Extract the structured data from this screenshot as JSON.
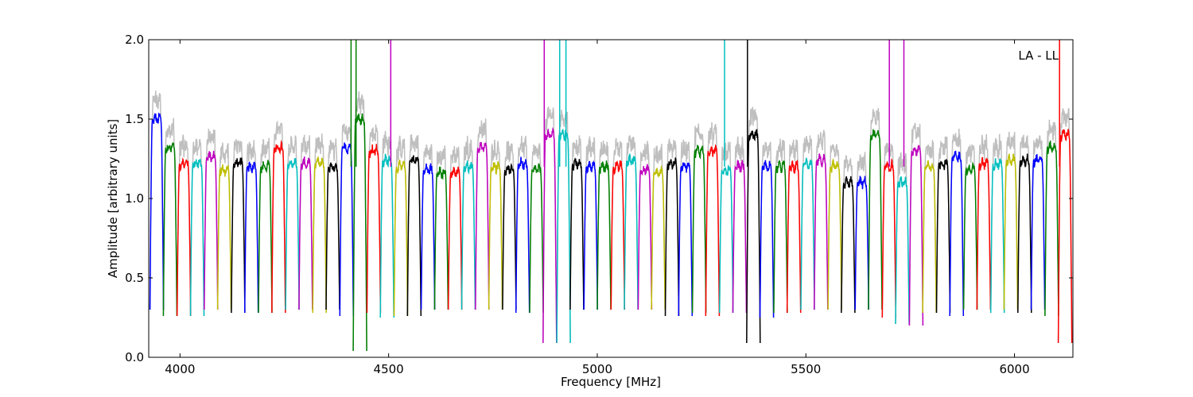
{
  "chart_data": {
    "type": "line",
    "title": "",
    "annotation": "LA - LL",
    "xlabel": "Frequency [MHz]",
    "ylabel": "Amplitude [arbitrary units]",
    "xlim": [
      3925,
      6140
    ],
    "ylim": [
      0.0,
      2.0
    ],
    "xticks": [
      {
        "value": 4000,
        "label": "4000"
      },
      {
        "value": 4500,
        "label": "4500"
      },
      {
        "value": 5000,
        "label": "5000"
      },
      {
        "value": 5500,
        "label": "5500"
      },
      {
        "value": 6000,
        "label": "6000"
      }
    ],
    "yticks": [
      {
        "value": 0.0,
        "label": "0.0"
      },
      {
        "value": 0.5,
        "label": "0.5"
      },
      {
        "value": 1.0,
        "label": "1.0"
      },
      {
        "value": 1.5,
        "label": "1.5"
      },
      {
        "value": 2.0,
        "label": "2.0"
      }
    ],
    "grid": false,
    "legend": "none",
    "channel_width_mhz": 32.5,
    "color_cycle": [
      "#0000ff",
      "#008000",
      "#ff0000",
      "#00bfbf",
      "#bf00bf",
      "#bfbf00",
      "#000000"
    ],
    "background_series": {
      "name": "unflagged",
      "color": "#bfbfbf"
    },
    "series": [
      {
        "start": 3928,
        "level": 1.5,
        "min": 0.3,
        "color": "#0000ff"
      },
      {
        "start": 3960,
        "level": 1.32,
        "min": 0.26,
        "color": "#008000"
      },
      {
        "start": 3993,
        "level": 1.22,
        "min": 0.26,
        "color": "#ff0000"
      },
      {
        "start": 4025,
        "level": 1.22,
        "min": 0.26,
        "color": "#00bfbf"
      },
      {
        "start": 4058,
        "level": 1.26,
        "min": 0.3,
        "color": "#bf00bf"
      },
      {
        "start": 4090,
        "level": 1.18,
        "min": 0.3,
        "color": "#bfbf00"
      },
      {
        "start": 4123,
        "level": 1.22,
        "min": 0.28,
        "color": "#000000"
      },
      {
        "start": 4155,
        "level": 1.2,
        "min": 0.28,
        "color": "#0000ff"
      },
      {
        "start": 4188,
        "level": 1.2,
        "min": 0.28,
        "color": "#008000"
      },
      {
        "start": 4220,
        "level": 1.32,
        "min": 0.28,
        "color": "#ff0000"
      },
      {
        "start": 4253,
        "level": 1.22,
        "min": 0.3,
        "color": "#00bfbf"
      },
      {
        "start": 4285,
        "level": 1.22,
        "min": 0.3,
        "color": "#bf00bf"
      },
      {
        "start": 4318,
        "level": 1.22,
        "min": 0.28,
        "color": "#bfbf00"
      },
      {
        "start": 4350,
        "level": 1.2,
        "min": 0.3,
        "color": "#000000"
      },
      {
        "start": 4383,
        "level": 1.32,
        "min": 0.26,
        "color": "#0000ff"
      },
      {
        "start": 4415,
        "level": 1.5,
        "min": 0.04,
        "color": "#008000"
      },
      {
        "start": 4448,
        "level": 1.3,
        "min": 0.28,
        "color": "#ff0000"
      },
      {
        "start": 4480,
        "level": 1.24,
        "min": 0.25,
        "color": "#00bfbf"
      },
      {
        "start": 4513,
        "level": 1.2,
        "min": 0.26,
        "color": "#bfbf00"
      },
      {
        "start": 4545,
        "level": 1.24,
        "min": 0.26,
        "color": "#000000"
      },
      {
        "start": 4578,
        "level": 1.18,
        "min": 0.3,
        "color": "#0000ff"
      },
      {
        "start": 4610,
        "level": 1.16,
        "min": 0.3,
        "color": "#008000"
      },
      {
        "start": 4643,
        "level": 1.16,
        "min": 0.3,
        "color": "#ff0000"
      },
      {
        "start": 4675,
        "level": 1.2,
        "min": 0.3,
        "color": "#00bfbf"
      },
      {
        "start": 4708,
        "level": 1.32,
        "min": 0.3,
        "color": "#bf00bf"
      },
      {
        "start": 4740,
        "level": 1.2,
        "min": 0.3,
        "color": "#bfbf00"
      },
      {
        "start": 4773,
        "level": 1.18,
        "min": 0.3,
        "color": "#000000"
      },
      {
        "start": 4805,
        "level": 1.22,
        "min": 0.28,
        "color": "#0000ff"
      },
      {
        "start": 4838,
        "level": 1.18,
        "min": 0.28,
        "color": "#008000"
      },
      {
        "start": 4870,
        "level": 1.4,
        "min": 0.09,
        "color": "#bf00bf"
      },
      {
        "start": 4903,
        "level": 1.4,
        "min": 0.09,
        "color": "#00bfbf"
      },
      {
        "start": 4935,
        "level": 1.22,
        "min": 0.3,
        "color": "#000000"
      },
      {
        "start": 4968,
        "level": 1.2,
        "min": 0.3,
        "color": "#0000ff"
      },
      {
        "start": 5000,
        "level": 1.2,
        "min": 0.3,
        "color": "#008000"
      },
      {
        "start": 5033,
        "level": 1.2,
        "min": 0.3,
        "color": "#ff0000"
      },
      {
        "start": 5065,
        "level": 1.24,
        "min": 0.3,
        "color": "#00bfbf"
      },
      {
        "start": 5098,
        "level": 1.18,
        "min": 0.3,
        "color": "#bf00bf"
      },
      {
        "start": 5130,
        "level": 1.16,
        "min": 0.3,
        "color": "#bfbf00"
      },
      {
        "start": 5163,
        "level": 1.22,
        "min": 0.26,
        "color": "#000000"
      },
      {
        "start": 5195,
        "level": 1.2,
        "min": 0.26,
        "color": "#0000ff"
      },
      {
        "start": 5228,
        "level": 1.3,
        "min": 0.28,
        "color": "#008000"
      },
      {
        "start": 5260,
        "level": 1.3,
        "min": 0.26,
        "color": "#ff0000"
      },
      {
        "start": 5293,
        "level": 1.18,
        "min": 0.28,
        "color": "#00bfbf"
      },
      {
        "start": 5325,
        "level": 1.2,
        "min": 0.28,
        "color": "#bf00bf"
      },
      {
        "start": 5358,
        "level": 1.4,
        "min": 0.09,
        "color": "#000000"
      },
      {
        "start": 5390,
        "level": 1.2,
        "min": 0.25,
        "color": "#0000ff"
      },
      {
        "start": 5423,
        "level": 1.2,
        "min": 0.28,
        "color": "#008000"
      },
      {
        "start": 5455,
        "level": 1.2,
        "min": 0.28,
        "color": "#ff0000"
      },
      {
        "start": 5488,
        "level": 1.22,
        "min": 0.3,
        "color": "#00bfbf"
      },
      {
        "start": 5520,
        "level": 1.24,
        "min": 0.3,
        "color": "#bf00bf"
      },
      {
        "start": 5553,
        "level": 1.2,
        "min": 0.3,
        "color": "#bfbf00"
      },
      {
        "start": 5585,
        "level": 1.1,
        "min": 0.28,
        "color": "#000000"
      },
      {
        "start": 5618,
        "level": 1.1,
        "min": 0.3,
        "color": "#0000ff"
      },
      {
        "start": 5650,
        "level": 1.4,
        "min": 0.3,
        "color": "#008000"
      },
      {
        "start": 5683,
        "level": 1.2,
        "min": 0.25,
        "color": "#ff0000"
      },
      {
        "start": 5715,
        "level": 1.1,
        "min": 0.21,
        "color": "#00bfbf"
      },
      {
        "start": 5748,
        "level": 1.3,
        "min": 0.2,
        "color": "#bf00bf"
      },
      {
        "start": 5780,
        "level": 1.2,
        "min": 0.28,
        "color": "#bfbf00"
      },
      {
        "start": 5813,
        "level": 1.22,
        "min": 0.28,
        "color": "#000000"
      },
      {
        "start": 5845,
        "level": 1.26,
        "min": 0.26,
        "color": "#0000ff"
      },
      {
        "start": 5878,
        "level": 1.18,
        "min": 0.3,
        "color": "#008000"
      },
      {
        "start": 5910,
        "level": 1.22,
        "min": 0.3,
        "color": "#ff0000"
      },
      {
        "start": 5943,
        "level": 1.22,
        "min": 0.28,
        "color": "#00bfbf"
      },
      {
        "start": 5975,
        "level": 1.24,
        "min": 0.3,
        "color": "#bfbf00"
      },
      {
        "start": 6008,
        "level": 1.24,
        "min": 0.28,
        "color": "#000000"
      },
      {
        "start": 6040,
        "level": 1.24,
        "min": 0.3,
        "color": "#0000ff"
      },
      {
        "start": 6073,
        "level": 1.32,
        "min": 0.26,
        "color": "#008000"
      },
      {
        "start": 6105,
        "level": 1.4,
        "min": 0.09,
        "color": "#ff0000"
      }
    ],
    "spikes": [
      {
        "x": 4410,
        "y": 2.0,
        "color": "#008000"
      },
      {
        "x": 4422,
        "y": 2.0,
        "color": "#008000"
      },
      {
        "x": 4505,
        "y": 2.0,
        "color": "#bf00bf"
      },
      {
        "x": 4873,
        "y": 2.0,
        "color": "#bf00bf"
      },
      {
        "x": 4910,
        "y": 2.0,
        "color": "#00bfbf"
      },
      {
        "x": 4925,
        "y": 2.0,
        "color": "#00bfbf"
      },
      {
        "x": 5305,
        "y": 2.0,
        "color": "#00bfbf"
      },
      {
        "x": 5360,
        "y": 2.0,
        "color": "#000000"
      },
      {
        "x": 5700,
        "y": 2.0,
        "color": "#bf00bf"
      },
      {
        "x": 5735,
        "y": 2.0,
        "color": "#bf00bf"
      },
      {
        "x": 6108,
        "y": 2.0,
        "color": "#ff0000"
      }
    ]
  }
}
